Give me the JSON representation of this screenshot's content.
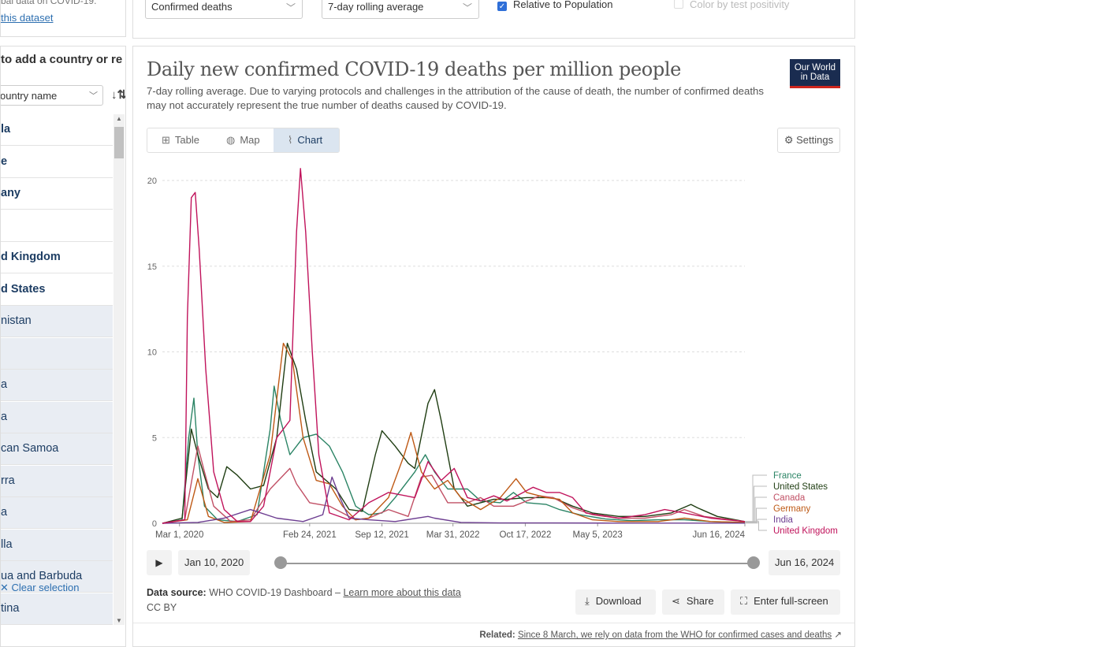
{
  "sidebar": {
    "top_text": "bal data on COVID-19.",
    "dataset_link": "this dataset",
    "search_prompt": "to add a country or re",
    "sort_label": "ountry name",
    "sort_icon": "sort-icon",
    "items": [
      {
        "label": "la",
        "selected": true
      },
      {
        "label": "e",
        "selected": true
      },
      {
        "label": "any",
        "selected": true
      },
      {
        "label": "",
        "selected": true
      },
      {
        "label": "d Kingdom",
        "selected": true
      },
      {
        "label": "d States",
        "selected": true
      },
      {
        "label": "nistan",
        "selected": false
      },
      {
        "label": "",
        "selected": false
      },
      {
        "label": "a",
        "selected": false
      },
      {
        "label": "a",
        "selected": false
      },
      {
        "label": "can Samoa",
        "selected": false
      },
      {
        "label": "rra",
        "selected": false
      },
      {
        "label": "a",
        "selected": false
      },
      {
        "label": "lla",
        "selected": false
      },
      {
        "label": "ua and Barbuda",
        "selected": false
      },
      {
        "label": "tina",
        "selected": false
      }
    ],
    "clear_selection": "✕ Clear selection"
  },
  "controls": {
    "metric": "Confirmed deaths",
    "interval": "7-day rolling average",
    "relative_to_population": {
      "label": "Relative to Population",
      "checked": true
    },
    "color_by_test_positivity": {
      "label": "Color by test positivity",
      "checked": false,
      "disabled": true
    }
  },
  "card": {
    "logo": {
      "line1": "Our World",
      "line2": "in Data"
    },
    "tabs": [
      {
        "label": "Table",
        "icon": "table-icon",
        "active": false
      },
      {
        "label": "Map",
        "icon": "globe-icon",
        "active": false
      },
      {
        "label": "Chart",
        "icon": "line-chart-icon",
        "active": true
      }
    ],
    "settings_label": "Settings",
    "timeline": {
      "start": "Jan 10, 2020",
      "end": "Jun 16, 2024",
      "play_icon": "play-icon"
    },
    "source_label": "Data source:",
    "source_value": "WHO COVID-19 Dashboard",
    "source_sep": "–",
    "source_link": "Learn more about this data",
    "license": "CC BY",
    "actions": {
      "download": "Download",
      "share": "Share",
      "fullscreen": "Enter full-screen"
    },
    "related_label": "Related:",
    "related_link": "Since 8 March, we rely on data from the WHO for confirmed cases and deaths"
  },
  "chart_data": {
    "type": "line",
    "title": "Daily new confirmed COVID-19 deaths per million people",
    "subtitle": "7-day rolling average. Due to varying protocols and challenges in the attribution of the cause of death, the number of confirmed deaths may not accurately represent the true number of deaths caused by COVID-19.",
    "x_tick_labels": [
      "Mar 1, 2020",
      "Feb 24, 2021",
      "Sep 12, 2021",
      "Mar 31, 2022",
      "Oct 17, 2022",
      "May 5, 2023",
      "Jun 16, 2024"
    ],
    "x_tick_values": [
      2020.16,
      2021.15,
      2021.7,
      2022.24,
      2022.79,
      2023.34,
      2024.46
    ],
    "xlim": [
      2020.03,
      2024.46
    ],
    "ylim": [
      0,
      20
    ],
    "y_ticks": [
      0,
      5,
      10,
      15,
      20
    ],
    "grid": "horizontal dotted",
    "legend_placement": "right, labels at line ends",
    "series": [
      {
        "name": "France",
        "color": "#2b8465",
        "points": [
          [
            2020.03,
            0
          ],
          [
            2020.18,
            0.2
          ],
          [
            2020.23,
            5
          ],
          [
            2020.27,
            7.3
          ],
          [
            2020.3,
            4
          ],
          [
            2020.35,
            1
          ],
          [
            2020.45,
            0.2
          ],
          [
            2020.6,
            0.1
          ],
          [
            2020.75,
            0.5
          ],
          [
            2020.85,
            5.5
          ],
          [
            2020.88,
            8
          ],
          [
            2020.93,
            6
          ],
          [
            2021.0,
            4
          ],
          [
            2021.1,
            5
          ],
          [
            2021.2,
            5.2
          ],
          [
            2021.3,
            4.5
          ],
          [
            2021.4,
            3
          ],
          [
            2021.5,
            1
          ],
          [
            2021.6,
            0.5
          ],
          [
            2021.7,
            0.6
          ],
          [
            2021.8,
            1.5
          ],
          [
            2021.95,
            3
          ],
          [
            2022.03,
            4
          ],
          [
            2022.1,
            3
          ],
          [
            2022.2,
            2
          ],
          [
            2022.35,
            2
          ],
          [
            2022.45,
            1.3
          ],
          [
            2022.6,
            1.2
          ],
          [
            2022.7,
            1.8
          ],
          [
            2022.8,
            1.2
          ],
          [
            2022.95,
            1.1
          ],
          [
            2023.05,
            0.8
          ],
          [
            2023.2,
            0.5
          ],
          [
            2023.4,
            0.25
          ],
          [
            2023.6,
            0.15
          ],
          [
            2023.8,
            0.2
          ],
          [
            2024.0,
            0.2
          ],
          [
            2024.2,
            0.1
          ],
          [
            2024.46,
            0.05
          ]
        ]
      },
      {
        "name": "United States",
        "color": "#1f3d12",
        "points": [
          [
            2020.03,
            0
          ],
          [
            2020.18,
            0.3
          ],
          [
            2020.25,
            5.5
          ],
          [
            2020.3,
            4
          ],
          [
            2020.38,
            2
          ],
          [
            2020.45,
            1.5
          ],
          [
            2020.52,
            3.3
          ],
          [
            2020.6,
            2.8
          ],
          [
            2020.7,
            2
          ],
          [
            2020.8,
            2.2
          ],
          [
            2020.9,
            5
          ],
          [
            2020.98,
            10.5
          ],
          [
            2021.05,
            9
          ],
          [
            2021.12,
            6
          ],
          [
            2021.2,
            3
          ],
          [
            2021.35,
            2
          ],
          [
            2021.45,
            0.8
          ],
          [
            2021.55,
            0.7
          ],
          [
            2021.65,
            4
          ],
          [
            2021.7,
            5.4
          ],
          [
            2021.8,
            4.5
          ],
          [
            2021.9,
            3.5
          ],
          [
            2021.95,
            3.2
          ],
          [
            2022.05,
            7
          ],
          [
            2022.1,
            7.8
          ],
          [
            2022.15,
            6
          ],
          [
            2022.25,
            2
          ],
          [
            2022.35,
            1
          ],
          [
            2022.45,
            1.2
          ],
          [
            2022.55,
            1.4
          ],
          [
            2022.65,
            1.4
          ],
          [
            2022.8,
            1.5
          ],
          [
            2023.0,
            1.5
          ],
          [
            2023.15,
            1
          ],
          [
            2023.3,
            0.6
          ],
          [
            2023.5,
            0.4
          ],
          [
            2023.7,
            0.4
          ],
          [
            2023.9,
            0.6
          ],
          [
            2024.05,
            1.1
          ],
          [
            2024.1,
            0.9
          ],
          [
            2024.25,
            0.4
          ],
          [
            2024.46,
            0.1
          ]
        ]
      },
      {
        "name": "Canada",
        "color": "#c15065",
        "points": [
          [
            2020.03,
            0
          ],
          [
            2020.2,
            0.2
          ],
          [
            2020.3,
            4.5
          ],
          [
            2020.35,
            3
          ],
          [
            2020.42,
            1
          ],
          [
            2020.55,
            0.1
          ],
          [
            2020.7,
            0.2
          ],
          [
            2020.85,
            2
          ],
          [
            2021.0,
            3.2
          ],
          [
            2021.05,
            2.3
          ],
          [
            2021.15,
            1.2
          ],
          [
            2021.3,
            1
          ],
          [
            2021.4,
            0.6
          ],
          [
            2021.5,
            0.2
          ],
          [
            2021.6,
            0.3
          ],
          [
            2021.75,
            0.8
          ],
          [
            2021.9,
            0.4
          ],
          [
            2022.0,
            2.7
          ],
          [
            2022.08,
            2.8
          ],
          [
            2022.2,
            1.2
          ],
          [
            2022.35,
            1.2
          ],
          [
            2022.45,
            1.5
          ],
          [
            2022.55,
            1
          ],
          [
            2022.7,
            1
          ],
          [
            2022.9,
            1.6
          ],
          [
            2023.0,
            1.5
          ],
          [
            2023.15,
            0.9
          ],
          [
            2023.3,
            0.5
          ],
          [
            2023.5,
            0.3
          ],
          [
            2023.7,
            0.3
          ],
          [
            2023.9,
            0.5
          ],
          [
            2024.0,
            0.8
          ],
          [
            2024.15,
            0.4
          ],
          [
            2024.46,
            0.1
          ]
        ]
      },
      {
        "name": "Germany",
        "color": "#be5915",
        "points": [
          [
            2020.03,
            0
          ],
          [
            2020.22,
            0.2
          ],
          [
            2020.3,
            2.6
          ],
          [
            2020.38,
            0.4
          ],
          [
            2020.5,
            0.05
          ],
          [
            2020.7,
            0.1
          ],
          [
            2020.85,
            4
          ],
          [
            2020.95,
            10.5
          ],
          [
            2021.02,
            9.5
          ],
          [
            2021.1,
            5
          ],
          [
            2021.2,
            2.5
          ],
          [
            2021.3,
            2.3
          ],
          [
            2021.4,
            1
          ],
          [
            2021.5,
            0.2
          ],
          [
            2021.6,
            0.3
          ],
          [
            2021.75,
            1.5
          ],
          [
            2021.87,
            4
          ],
          [
            2021.92,
            5.3
          ],
          [
            2022.0,
            3
          ],
          [
            2022.1,
            2
          ],
          [
            2022.2,
            2.5
          ],
          [
            2022.3,
            1.5
          ],
          [
            2022.45,
            0.8
          ],
          [
            2022.6,
            1.5
          ],
          [
            2022.72,
            2.6
          ],
          [
            2022.8,
            1.8
          ],
          [
            2022.95,
            1.5
          ],
          [
            2023.05,
            1.4
          ],
          [
            2023.15,
            0.6
          ],
          [
            2023.3,
            0.2
          ],
          [
            2023.5,
            0.1
          ],
          [
            2023.8,
            0.1
          ],
          [
            2024.0,
            0.3
          ],
          [
            2024.2,
            0.1
          ],
          [
            2024.46,
            0.05
          ]
        ]
      },
      {
        "name": "India",
        "color": "#6d3e91",
        "points": [
          [
            2020.03,
            0
          ],
          [
            2020.3,
            0.05
          ],
          [
            2020.5,
            0.3
          ],
          [
            2020.7,
            0.8
          ],
          [
            2020.9,
            0.3
          ],
          [
            2021.1,
            0.1
          ],
          [
            2021.25,
            0.5
          ],
          [
            2021.32,
            2.7
          ],
          [
            2021.38,
            1.5
          ],
          [
            2021.45,
            0.3
          ],
          [
            2021.6,
            0.2
          ],
          [
            2021.8,
            0.1
          ],
          [
            2022.05,
            0.4
          ],
          [
            2022.1,
            0.3
          ],
          [
            2022.3,
            0.05
          ],
          [
            2022.6,
            0.02
          ],
          [
            2023.0,
            0.02
          ],
          [
            2023.5,
            0.01
          ],
          [
            2024.46,
            0.01
          ]
        ]
      },
      {
        "name": "United Kingdom",
        "color": "#c0135b",
        "points": [
          [
            2020.03,
            0
          ],
          [
            2020.2,
            0.2
          ],
          [
            2020.22,
            12
          ],
          [
            2020.25,
            19
          ],
          [
            2020.28,
            19.3
          ],
          [
            2020.31,
            16
          ],
          [
            2020.36,
            9
          ],
          [
            2020.42,
            3
          ],
          [
            2020.5,
            0.8
          ],
          [
            2020.6,
            0.1
          ],
          [
            2020.7,
            0.1
          ],
          [
            2020.8,
            1
          ],
          [
            2020.9,
            5
          ],
          [
            2020.95,
            5.5
          ],
          [
            2021.0,
            6
          ],
          [
            2021.05,
            17
          ],
          [
            2021.08,
            20.7
          ],
          [
            2021.12,
            17
          ],
          [
            2021.17,
            10
          ],
          [
            2021.22,
            4
          ],
          [
            2021.3,
            0.6
          ],
          [
            2021.45,
            0.2
          ],
          [
            2021.6,
            1.2
          ],
          [
            2021.75,
            1.8
          ],
          [
            2021.95,
            1.5
          ],
          [
            2022.05,
            3.6
          ],
          [
            2022.15,
            2.5
          ],
          [
            2022.25,
            3.2
          ],
          [
            2022.35,
            1.5
          ],
          [
            2022.45,
            1.3
          ],
          [
            2022.55,
            1.6
          ],
          [
            2022.65,
            1.3
          ],
          [
            2022.85,
            2.1
          ],
          [
            2022.95,
            1.8
          ],
          [
            2023.05,
            1.8
          ],
          [
            2023.15,
            1.5
          ],
          [
            2023.25,
            0.6
          ],
          [
            2023.5,
            0.3
          ],
          [
            2023.7,
            0.5
          ],
          [
            2023.85,
            0.8
          ],
          [
            2024.0,
            0.6
          ],
          [
            2024.2,
            0.3
          ],
          [
            2024.46,
            0.1
          ]
        ]
      }
    ]
  }
}
